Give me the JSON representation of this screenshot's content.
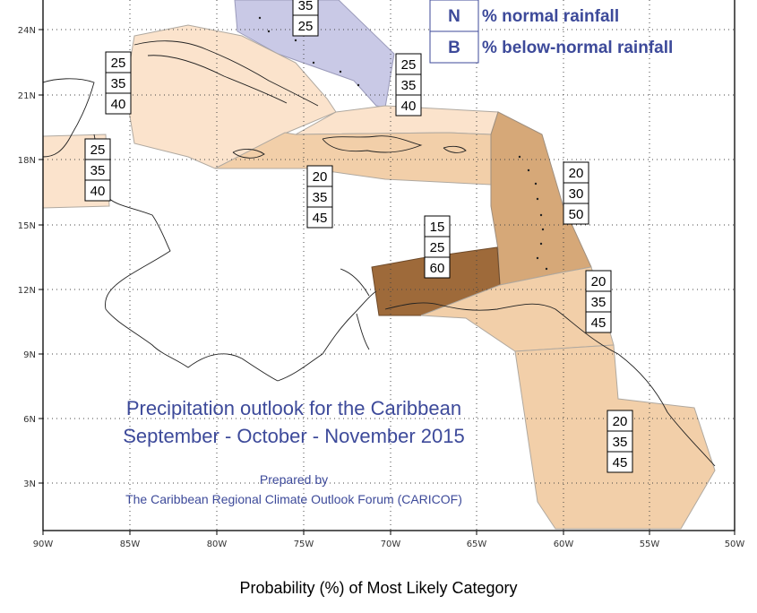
{
  "map": {
    "lon_ticks": [
      "90W",
      "85W",
      "80W",
      "75W",
      "70W",
      "65W",
      "60W",
      "55W",
      "50W"
    ],
    "lat_ticks": [
      "24N",
      "21N",
      "18N",
      "15N",
      "12N",
      "9N",
      "6N",
      "3N"
    ],
    "title_line1": "Precipitation outlook for the Caribbean",
    "title_line2": "September - October - November 2015",
    "prepared_by": "Prepared by",
    "organization": "The Caribbean Regional Climate Outlook Forum (CARICOF)",
    "caption": "Probability (%) of Most Likely Category",
    "legend": [
      {
        "key": "N",
        "label": "% normal rainfall"
      },
      {
        "key": "B",
        "label": "% below-normal rainfall"
      }
    ],
    "colors": {
      "tan_light": "#fbe3cc",
      "tan_mid": "#f2cfa9",
      "brown_mid": "#d6a878",
      "brown_dark": "#9e6a3a",
      "above_region": "#c9c9e6",
      "legend_text": "#3d4a9a"
    },
    "probability_boxes": [
      {
        "values": [
          "35",
          "25"
        ]
      },
      {
        "values": [
          "25",
          "35",
          "40"
        ]
      },
      {
        "values": [
          "25",
          "35",
          "40"
        ]
      },
      {
        "values": [
          "25",
          "35",
          "40"
        ]
      },
      {
        "values": [
          "20",
          "35",
          "45"
        ]
      },
      {
        "values": [
          "20",
          "30",
          "50"
        ]
      },
      {
        "values": [
          "15",
          "25",
          "60"
        ]
      },
      {
        "values": [
          "20",
          "35",
          "45"
        ]
      },
      {
        "values": [
          "20",
          "35",
          "45"
        ]
      }
    ]
  }
}
